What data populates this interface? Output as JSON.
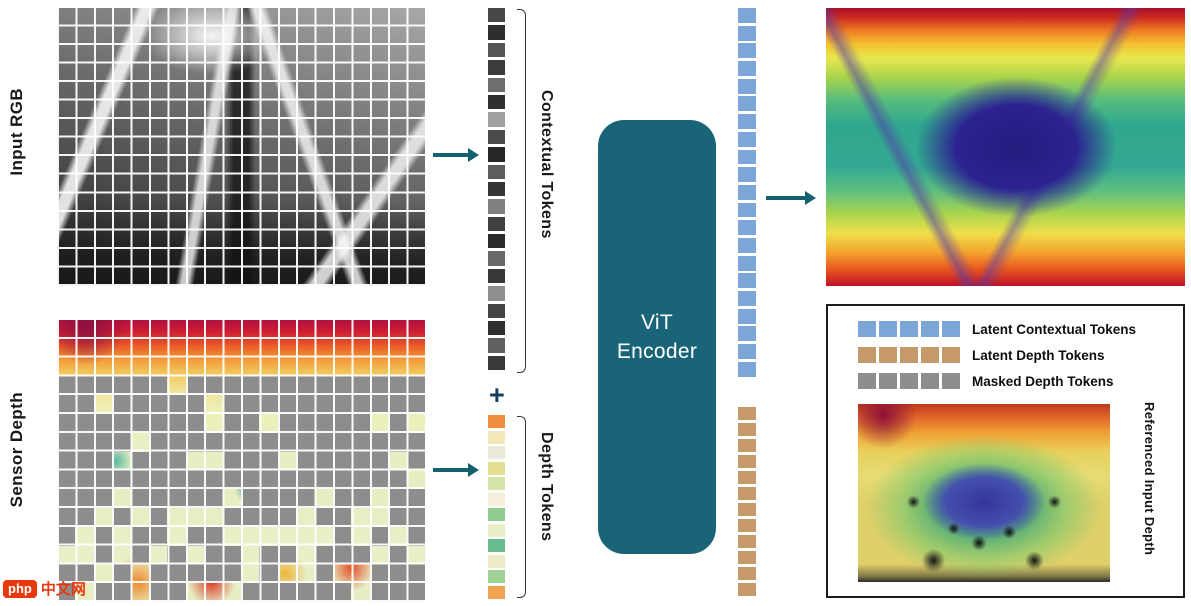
{
  "labels": {
    "input_rgb": "Input RGB",
    "sensor_depth": "Sensor Depth",
    "contextual_tokens": "Contextual Tokens",
    "depth_tokens": "Depth Tokens",
    "plus": "+",
    "referenced_input_depth": "Referenced Input Depth"
  },
  "encoder": {
    "line1": "ViT",
    "line2": "Encoder",
    "color": "#1A6478"
  },
  "tokens": {
    "contextual": {
      "colors": [
        "#474747",
        "#2e2e2e",
        "#555555",
        "#3b3b3b",
        "#6e6e6e",
        "#303030",
        "#a0a0a0",
        "#4a4a4a",
        "#272727",
        "#5d5d5d",
        "#343434",
        "#808080",
        "#404040",
        "#2b2b2b",
        "#696969",
        "#383838",
        "#8f8f8f",
        "#454545",
        "#2f2f2f",
        "#606060",
        "#393939"
      ]
    },
    "depth": {
      "colors": [
        "#ED8E3F",
        "#F3E6B8",
        "#EDE9D8",
        "#E4E092",
        "#D5E5A8",
        "#F4F0DC",
        "#8FCB8E",
        "#E9EFC9",
        "#67BD8F",
        "#F0EBC9",
        "#9ED193",
        "#F0A452"
      ]
    }
  },
  "latent": {
    "contextual": {
      "count": 21,
      "color": "#7CA6D8"
    },
    "depth": {
      "count": 12,
      "color": "#C6996B"
    }
  },
  "legend": {
    "swatch_count": 5,
    "items": [
      {
        "label": "Latent Contextual Tokens",
        "color": "#7CA6D8"
      },
      {
        "label": "Latent Depth Tokens",
        "color": "#C6996B"
      },
      {
        "label": "Masked Depth Tokens",
        "color": "#8D8D8D"
      }
    ]
  },
  "masked_grid": {
    "cols": 20,
    "rows": 15,
    "clear_top_rows": 3,
    "mid_end_row": 8,
    "density_mid": 0.85,
    "density_bottom": 0.55,
    "color": "#8D8D8D"
  },
  "watermark": {
    "badge": "php",
    "text": "中文网",
    "color": "#E8380D"
  }
}
